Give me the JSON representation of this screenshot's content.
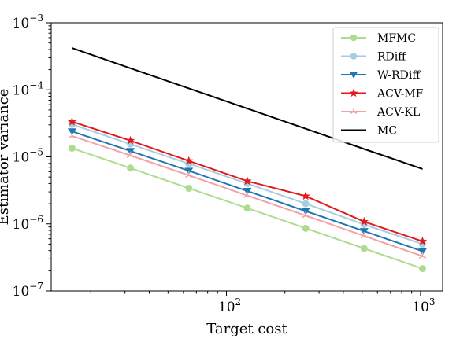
{
  "chart_data": {
    "type": "line",
    "title": "",
    "xlabel": "Target cost",
    "ylabel": "Estimator variance",
    "xscale": "log",
    "yscale": "log",
    "xlim": [
      12.5,
      1300
    ],
    "ylim": [
      1e-07,
      0.001
    ],
    "x_ticks": [
      {
        "value": 100,
        "base": "10",
        "exp": "2"
      },
      {
        "value": 1000,
        "base": "10",
        "exp": "3"
      }
    ],
    "y_ticks": [
      {
        "value": 1e-07,
        "base": "10",
        "exp": "−7"
      },
      {
        "value": 1e-06,
        "base": "10",
        "exp": "−6"
      },
      {
        "value": 1e-05,
        "base": "10",
        "exp": "−5"
      },
      {
        "value": 0.0001,
        "base": "10",
        "exp": "−4"
      },
      {
        "value": 0.001,
        "base": "10",
        "exp": "−3"
      }
    ],
    "grid": false,
    "legend_position": "top-right",
    "x": [
      16,
      32,
      64,
      128,
      256,
      512,
      1024
    ],
    "series": [
      {
        "name": "MFMC",
        "color": "#addc91",
        "marker": "circle",
        "values": [
          1.35e-05,
          6.8e-06,
          3.4e-06,
          1.72e-06,
          8.6e-07,
          4.3e-07,
          2.15e-07
        ]
      },
      {
        "name": "RDiff",
        "color": "#a6cee3",
        "marker": "circle",
        "values": [
          3.05e-05,
          1.55e-05,
          7.9e-06,
          4e-06,
          2e-06,
          9.8e-07,
          5e-07
        ]
      },
      {
        "name": "W-RDiff",
        "color": "#1f78b4",
        "marker": "triangle-down",
        "values": [
          2.4e-05,
          1.22e-05,
          6.2e-06,
          3.1e-06,
          1.55e-06,
          7.8e-07,
          3.9e-07
        ]
      },
      {
        "name": "ACV-MF",
        "color": "#e31a1c",
        "marker": "star",
        "values": [
          3.35e-05,
          1.75e-05,
          8.7e-06,
          4.35e-06,
          2.6e-06,
          1.08e-06,
          5.5e-07
        ]
      },
      {
        "name": "ACV-KL",
        "color": "#f4a1a6",
        "marker": "tri",
        "values": [
          2.05e-05,
          1.05e-05,
          5.3e-06,
          2.65e-06,
          1.33e-06,
          6.6e-07,
          3.3e-07
        ]
      },
      {
        "name": "MC",
        "color": "#000000",
        "marker": "none",
        "values": [
          0.00042,
          0.00021,
          0.000105,
          5.25e-05,
          2.63e-05,
          1.31e-05,
          6.6e-06
        ]
      }
    ]
  }
}
